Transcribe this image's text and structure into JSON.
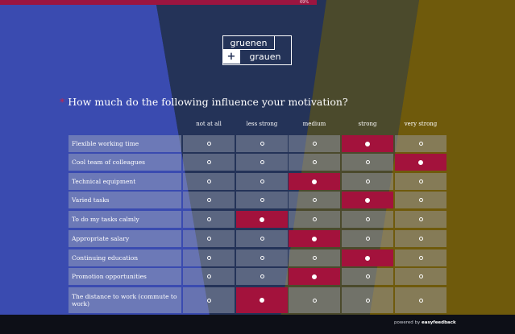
{
  "progress": "69%",
  "logo": {
    "line1": "gruenen",
    "plus": "+",
    "line2": "grauen"
  },
  "question": {
    "required_mark": "*",
    "text": "How much do the following influence your motivation?"
  },
  "columns": [
    "not at all",
    "less strong",
    "medium",
    "strong",
    "very strong"
  ],
  "rows": [
    {
      "label": "Flexible working time",
      "selected": 3
    },
    {
      "label": "Cool team of colleagues",
      "selected": 4
    },
    {
      "label": "Technical equipment",
      "selected": 2
    },
    {
      "label": "Varied tasks",
      "selected": 3
    },
    {
      "label": "To do my tasks calmly",
      "selected": 1
    },
    {
      "label": "Appropriate salary",
      "selected": 2
    },
    {
      "label": "Continuing education",
      "selected": 3
    },
    {
      "label": "Promotion opportunities",
      "selected": 2
    },
    {
      "label": "The distance to work (commute to work)",
      "selected": 1
    }
  ],
  "footer": {
    "prefix": "powered by",
    "brand": "easyfeedback"
  },
  "colors": {
    "accent": "#a3123c",
    "background": "#253257"
  }
}
